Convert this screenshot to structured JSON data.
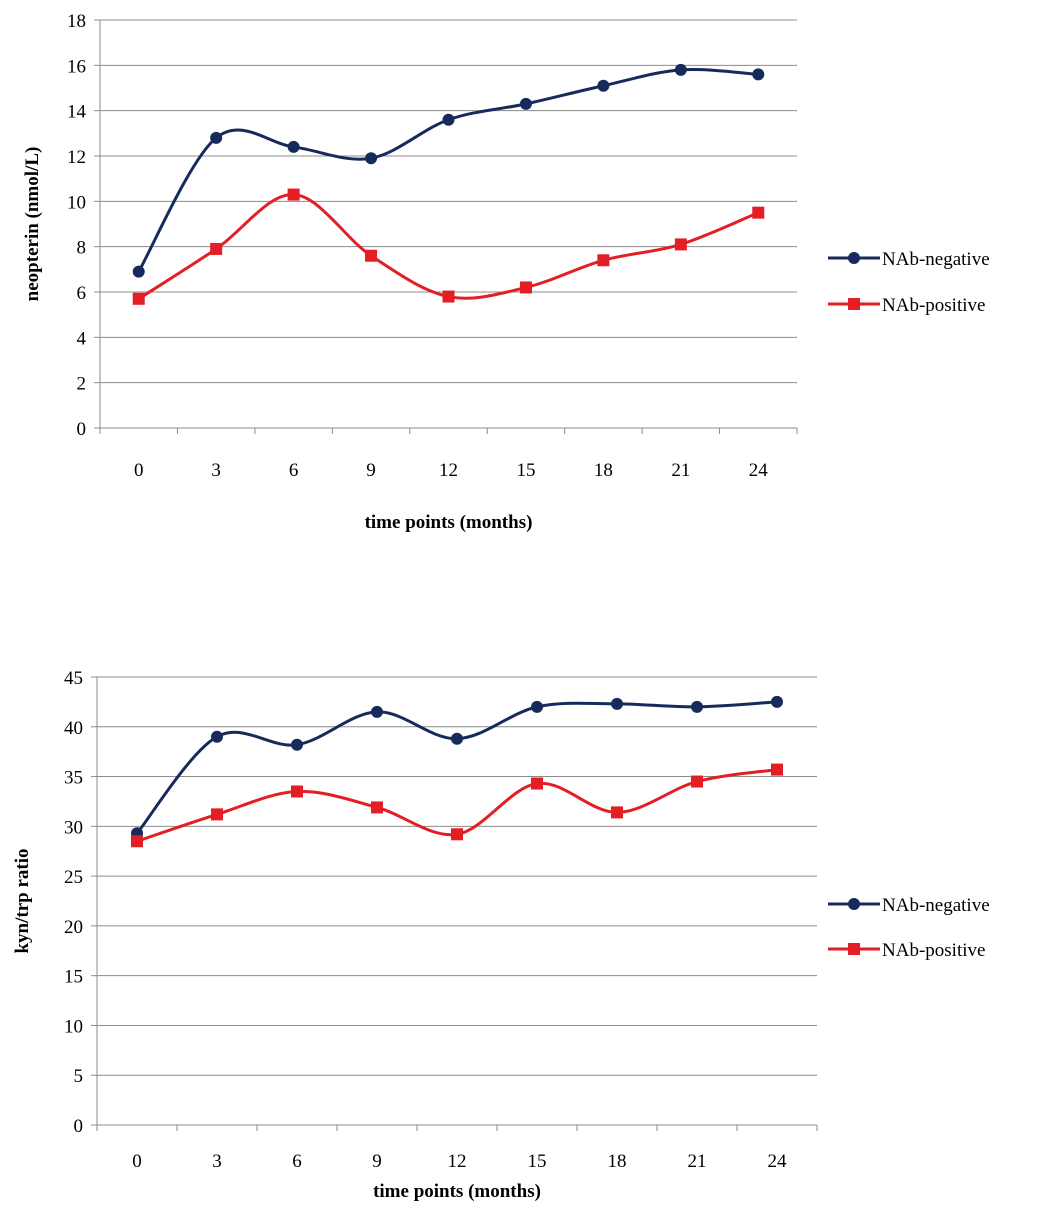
{
  "colors": {
    "negative": "#172a5c",
    "positive": "#e31e24"
  },
  "chart_data": [
    {
      "type": "line",
      "x": [
        0,
        3,
        6,
        9,
        12,
        15,
        18,
        21,
        24
      ],
      "categories": [
        "0",
        "3",
        "6",
        "9",
        "12",
        "15",
        "18",
        "21",
        "24"
      ],
      "xlabel": "time points (months)",
      "ylabel": "neopterin (nmol/L)",
      "ylim": [
        0,
        18
      ],
      "yticks": [
        0,
        2,
        4,
        6,
        8,
        10,
        12,
        14,
        16,
        18
      ],
      "grid": true,
      "legend": "right",
      "series": [
        {
          "name": "NAb-negative",
          "marker": "circle",
          "values": [
            6.9,
            12.8,
            12.4,
            11.9,
            13.6,
            14.3,
            15.1,
            15.8,
            15.6
          ]
        },
        {
          "name": "NAb-positive",
          "marker": "square",
          "values": [
            5.7,
            7.9,
            10.3,
            7.6,
            5.8,
            6.2,
            7.4,
            8.1,
            9.5
          ]
        }
      ]
    },
    {
      "type": "line",
      "x": [
        0,
        3,
        6,
        9,
        12,
        15,
        18,
        21,
        24
      ],
      "categories": [
        "0",
        "3",
        "6",
        "9",
        "12",
        "15",
        "18",
        "21",
        "24"
      ],
      "xlabel": "time points (months)",
      "ylabel": "kyn/trp ratio",
      "ylim": [
        0,
        45
      ],
      "yticks": [
        0,
        5,
        10,
        15,
        20,
        25,
        30,
        35,
        40,
        45
      ],
      "grid": true,
      "legend": "right",
      "series": [
        {
          "name": "NAb-negative",
          "marker": "circle",
          "values": [
            29.3,
            39.0,
            38.2,
            41.5,
            38.8,
            42.0,
            42.3,
            42.0,
            42.5
          ]
        },
        {
          "name": "NAb-positive",
          "marker": "square",
          "values": [
            28.5,
            31.2,
            33.5,
            31.9,
            29.2,
            34.3,
            31.4,
            34.5,
            35.7
          ]
        }
      ]
    }
  ]
}
